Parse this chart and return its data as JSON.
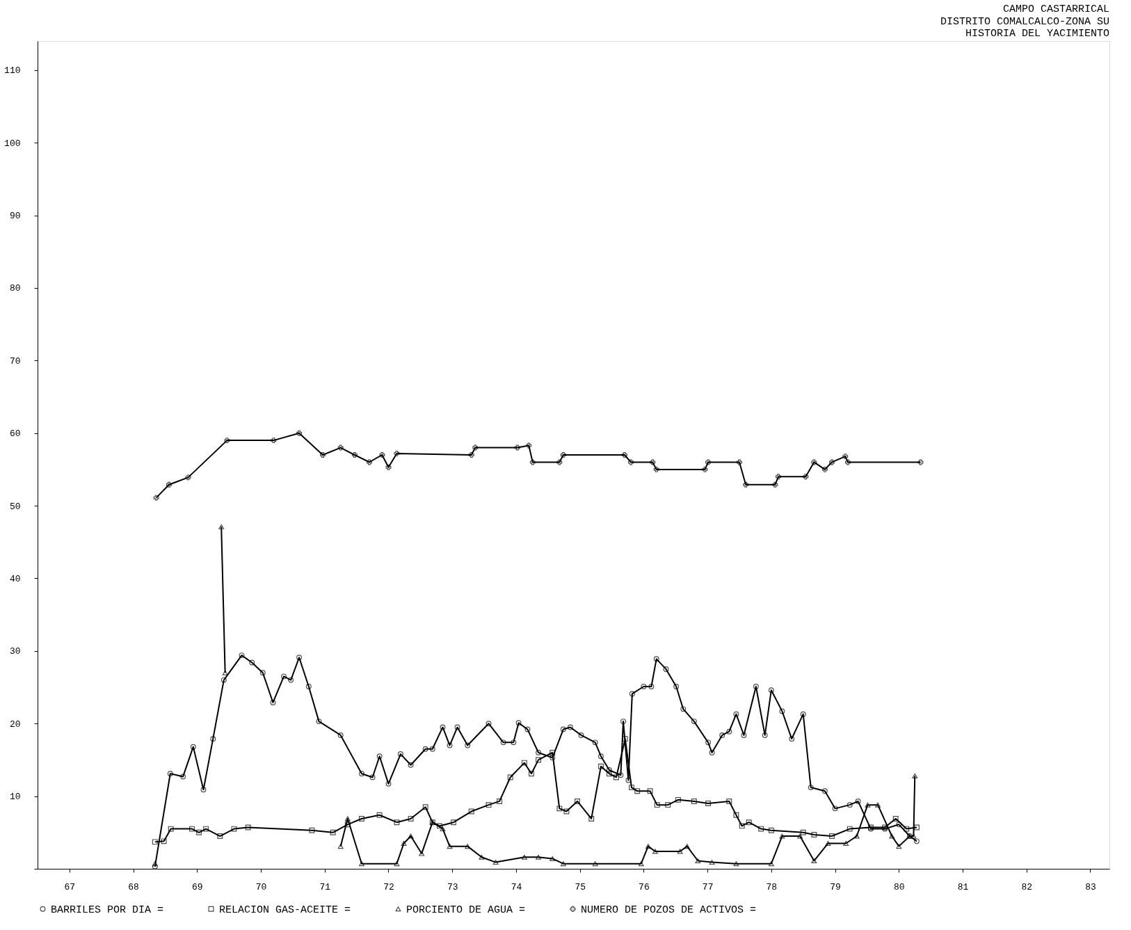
{
  "chart_data": {
    "type": "line",
    "title": "CAMPO CASTARRICAL",
    "subtitle": "DISTRITO COMALCALCO-ZONA SU\nHISTORIA DEL YACIMIENTO",
    "xlim": [
      66.5,
      83.3
    ],
    "xticks": [
      67,
      68,
      69,
      70,
      71,
      72,
      73,
      74,
      75,
      76,
      77,
      78,
      79,
      80,
      81,
      82,
      83
    ],
    "ylim": [
      0,
      114
    ],
    "yticks": [
      {
        "value": 0,
        "label": null
      },
      10,
      20,
      30,
      40,
      50,
      60,
      70,
      80,
      90,
      100,
      110
    ],
    "grid": false,
    "legend": "bottom",
    "line_style": "solid",
    "series": [
      {
        "name": "BARRILES POR DIA =",
        "color": "#000000",
        "marker": "circle",
        "x": [
          68.34,
          68.58,
          68.78,
          68.94,
          69.1,
          69.25,
          69.42,
          69.7,
          69.86,
          70.03,
          70.19,
          70.36,
          70.47,
          70.6,
          70.75,
          70.91,
          71.25,
          71.58,
          71.75,
          71.86,
          72.0,
          72.19,
          72.35,
          72.58,
          72.69,
          72.85,
          72.96,
          73.08,
          73.24,
          73.57,
          73.8,
          73.96,
          74.04,
          74.18,
          74.35,
          74.57,
          74.74,
          74.85,
          75.02,
          75.24,
          75.33,
          75.46,
          75.64,
          75.68,
          75.76,
          75.82,
          76.0,
          76.12,
          76.2,
          76.35,
          76.51,
          76.62,
          76.79,
          77.01,
          77.07,
          77.23,
          77.34,
          77.45,
          77.57,
          77.76,
          77.9,
          78.0,
          78.17,
          78.32,
          78.5,
          78.62,
          78.84,
          79.0,
          79.23,
          79.36,
          79.56,
          79.78,
          80.0,
          80.17,
          80.28
        ],
        "values": [
          0.3,
          13.1,
          12.7,
          16.8,
          10.9,
          17.9,
          26,
          29.4,
          28.4,
          27,
          22.9,
          26.5,
          26,
          29.1,
          25.1,
          20.3,
          18.4,
          13.1,
          12.6,
          15.5,
          11.7,
          15.8,
          14.3,
          16.5,
          16.5,
          19.5,
          17,
          19.5,
          17,
          20,
          17.4,
          17.4,
          20.1,
          19.2,
          16,
          15.3,
          19.2,
          19.5,
          18.4,
          17.4,
          15.5,
          13.6,
          12.9,
          20.3,
          12.2,
          24.1,
          25.1,
          25.1,
          28.9,
          27.5,
          25.1,
          22,
          20.3,
          17.4,
          16,
          18.4,
          18.9,
          21.3,
          18.4,
          25.1,
          18.4,
          24.6,
          21.7,
          17.9,
          21.3,
          11.2,
          10.7,
          8.3,
          8.8,
          9.3,
          5.5,
          5.5,
          6.1,
          4.5,
          3.8
        ]
      },
      {
        "name": "RELACION GAS-ACEITE =",
        "color": "#000000",
        "marker": "square",
        "x": [
          68.34,
          68.48,
          68.59,
          68.92,
          69.03,
          69.14,
          69.36,
          69.58,
          69.8,
          70.8,
          71.13,
          71.36,
          71.58,
          71.86,
          72.13,
          72.35,
          72.58,
          72.69,
          72.8,
          73.02,
          73.3,
          73.57,
          73.74,
          73.91,
          74.13,
          74.24,
          74.35,
          74.57,
          74.68,
          74.79,
          74.96,
          75.18,
          75.33,
          75.46,
          75.57,
          75.71,
          75.81,
          75.9,
          76.1,
          76.21,
          76.38,
          76.54,
          76.79,
          77.01,
          77.34,
          77.45,
          77.54,
          77.65,
          77.84,
          78.0,
          78.5,
          78.67,
          78.95,
          79.23,
          79.56,
          79.78,
          79.95,
          80.12,
          80.28
        ],
        "values": [
          3.7,
          3.8,
          5.5,
          5.5,
          5,
          5.5,
          4.5,
          5.5,
          5.7,
          5.3,
          5,
          6.1,
          6.9,
          7.4,
          6.4,
          6.9,
          8.5,
          6.4,
          5.9,
          6.4,
          7.9,
          8.8,
          9.3,
          12.6,
          14.6,
          13.1,
          15,
          16,
          8.3,
          7.9,
          9.3,
          6.9,
          14.1,
          13.1,
          12.6,
          17.9,
          11.2,
          10.7,
          10.7,
          8.8,
          8.8,
          9.5,
          9.3,
          9,
          9.3,
          7.4,
          5.9,
          6.4,
          5.5,
          5.3,
          5,
          4.7,
          4.5,
          5.5,
          5.7,
          5.7,
          6.9,
          5.5,
          5.7
        ]
      },
      {
        "name": "PORCIENTO DE AGUA =",
        "color": "#000000",
        "marker": "triangle",
        "x": [
          68.34,
          68.9,
          69.38,
          69.44,
          70.5,
          71.25,
          71.36,
          71.58,
          72.13,
          72.24,
          72.35,
          72.52,
          72.69,
          72.85,
          72.96,
          73.24,
          73.46,
          73.68,
          74.13,
          74.35,
          74.57,
          74.74,
          75.24,
          75.96,
          76.07,
          76.18,
          76.57,
          76.68,
          76.85,
          77.07,
          77.45,
          78.0,
          78.17,
          78.45,
          78.67,
          78.89,
          79.17,
          79.34,
          79.51,
          79.67,
          79.89,
          80.0,
          80.17,
          80.23,
          80.25
        ],
        "values": [
          0.7,
          null,
          47.1,
          27,
          null,
          3.1,
          6.9,
          0.7,
          0.7,
          3.5,
          4.5,
          2.1,
          6.4,
          5.5,
          3.1,
          3.1,
          1.6,
          0.9,
          1.6,
          1.6,
          1.4,
          0.7,
          0.7,
          0.7,
          3.1,
          2.4,
          2.4,
          3.1,
          1.1,
          0.9,
          0.7,
          0.7,
          4.5,
          4.5,
          1.1,
          3.5,
          3.5,
          4.5,
          8.8,
          8.8,
          4.5,
          3.1,
          4.5,
          4.5,
          12.8
        ]
      },
      {
        "name": "NUMERO DE POZOS DE ACTIVOS =",
        "color": "#000000",
        "marker": "cross",
        "x": [
          68.36,
          68.56,
          68.86,
          69.47,
          70.2,
          70.6,
          70.97,
          71.25,
          71.47,
          71.7,
          71.9,
          72.0,
          72.13,
          73.3,
          73.36,
          74.02,
          74.2,
          74.26,
          74.68,
          74.74,
          75.7,
          75.8,
          76.14,
          76.2,
          76.96,
          77.01,
          77.5,
          77.6,
          78.06,
          78.11,
          78.54,
          78.67,
          78.84,
          78.95,
          79.16,
          79.2,
          80.34
        ],
        "values": [
          51.1,
          52.9,
          53.9,
          59,
          59,
          60,
          57,
          58,
          57,
          56,
          57,
          55.3,
          57.2,
          57,
          58,
          58,
          58.3,
          56,
          56,
          57,
          57,
          56,
          56,
          55,
          55,
          56,
          56,
          52.9,
          52.9,
          54,
          54,
          56,
          55,
          56,
          56.8,
          56,
          56
        ]
      }
    ]
  }
}
